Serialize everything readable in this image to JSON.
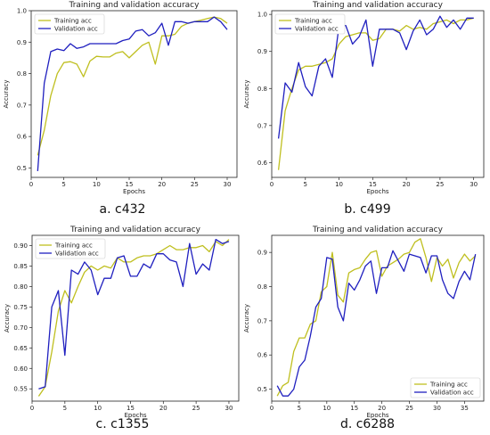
{
  "chart_data": [
    {
      "type": "line",
      "caption": "a. c432",
      "title": "Training and validation accuracy",
      "xlabel": "Epochs",
      "ylabel": "Accuracy",
      "xlim": [
        0,
        31.5
      ],
      "ylim": [
        0.47,
        1.0
      ],
      "xticks": [
        0,
        5,
        10,
        15,
        20,
        25,
        30
      ],
      "yticks": [
        0.5,
        0.6,
        0.7,
        0.8,
        0.9,
        1.0
      ],
      "ytick_labels": [
        "0.5",
        "0.6",
        "0.7",
        "0.8",
        "0.9",
        "1.0"
      ],
      "legend_position": "top-left",
      "x": [
        1,
        2,
        3,
        4,
        5,
        6,
        7,
        8,
        9,
        10,
        11,
        12,
        13,
        14,
        15,
        16,
        17,
        18,
        19,
        20,
        21,
        22,
        23,
        24,
        25,
        26,
        27,
        28,
        29,
        30
      ],
      "series": [
        {
          "name": "Training acc",
          "color": "#bfbf1f",
          "values": [
            0.54,
            0.62,
            0.73,
            0.8,
            0.835,
            0.838,
            0.83,
            0.79,
            0.84,
            0.855,
            0.853,
            0.853,
            0.865,
            0.87,
            0.85,
            0.87,
            0.89,
            0.9,
            0.83,
            0.92,
            0.92,
            0.925,
            0.95,
            0.96,
            0.965,
            0.97,
            0.975,
            0.98,
            0.975,
            0.96
          ]
        },
        {
          "name": "Validation acc",
          "color": "#1f1fbf",
          "values": [
            0.49,
            0.77,
            0.87,
            0.878,
            0.873,
            0.895,
            0.88,
            0.885,
            0.895,
            0.895,
            0.895,
            0.895,
            0.895,
            0.905,
            0.91,
            0.935,
            0.94,
            0.92,
            0.93,
            0.96,
            0.89,
            0.965,
            0.965,
            0.96,
            0.965,
            0.965,
            0.965,
            0.98,
            0.965,
            0.94
          ]
        }
      ]
    },
    {
      "type": "line",
      "caption": "b. c499",
      "title": "Training and validation accuracy",
      "xlabel": "Epochs",
      "ylabel": "Accuracy",
      "xlim": [
        0,
        31.5
      ],
      "ylim": [
        0.56,
        1.01
      ],
      "xticks": [
        0,
        5,
        10,
        15,
        20,
        25,
        30
      ],
      "yticks": [
        0.6,
        0.7,
        0.8,
        0.9,
        1.0
      ],
      "ytick_labels": [
        "0.6",
        "0.7",
        "0.8",
        "0.9",
        "1.0"
      ],
      "legend_position": "top-left",
      "x": [
        1,
        2,
        3,
        4,
        5,
        6,
        7,
        8,
        9,
        10,
        11,
        12,
        13,
        14,
        15,
        16,
        17,
        18,
        19,
        20,
        21,
        22,
        23,
        24,
        25,
        26,
        27,
        28,
        29,
        30
      ],
      "series": [
        {
          "name": "Training acc",
          "color": "#bfbf1f",
          "values": [
            0.58,
            0.74,
            0.8,
            0.85,
            0.86,
            0.86,
            0.865,
            0.87,
            0.88,
            0.92,
            0.94,
            0.945,
            0.95,
            0.95,
            0.93,
            0.935,
            0.96,
            0.96,
            0.955,
            0.97,
            0.96,
            0.965,
            0.96,
            0.975,
            0.98,
            0.985,
            0.975,
            0.985,
            0.985,
            0.99
          ]
        },
        {
          "name": "Validation acc",
          "color": "#1f1fbf",
          "values": [
            0.665,
            0.815,
            0.79,
            0.87,
            0.805,
            0.78,
            0.86,
            0.88,
            0.83,
            0.97,
            0.97,
            0.92,
            0.94,
            0.985,
            0.86,
            0.96,
            0.96,
            0.96,
            0.95,
            0.905,
            0.955,
            0.985,
            0.945,
            0.96,
            0.995,
            0.965,
            0.985,
            0.96,
            0.99,
            0.99
          ]
        }
      ]
    },
    {
      "type": "line",
      "caption": "c. c1355",
      "title": "Training and validation accuracy",
      "xlabel": "Epochs",
      "ylabel": "Accuracy",
      "xlim": [
        0,
        31.5
      ],
      "ylim": [
        0.52,
        0.925
      ],
      "xticks": [
        0,
        5,
        10,
        15,
        20,
        25,
        30
      ],
      "yticks": [
        0.55,
        0.6,
        0.65,
        0.7,
        0.75,
        0.8,
        0.85,
        0.9
      ],
      "ytick_labels": [
        "0.55",
        "0.60",
        "0.65",
        "0.70",
        "0.75",
        "0.80",
        "0.85",
        "0.90"
      ],
      "legend_position": "top-left",
      "x": [
        1,
        2,
        3,
        4,
        5,
        6,
        7,
        8,
        9,
        10,
        11,
        12,
        13,
        14,
        15,
        16,
        17,
        18,
        19,
        20,
        21,
        22,
        23,
        24,
        25,
        26,
        27,
        28,
        29,
        30
      ],
      "series": [
        {
          "name": "Training acc",
          "color": "#bfbf1f",
          "values": [
            0.532,
            0.555,
            0.64,
            0.74,
            0.79,
            0.76,
            0.8,
            0.835,
            0.85,
            0.84,
            0.85,
            0.845,
            0.87,
            0.86,
            0.86,
            0.87,
            0.875,
            0.875,
            0.88,
            0.89,
            0.9,
            0.89,
            0.89,
            0.895,
            0.895,
            0.9,
            0.885,
            0.91,
            0.9,
            0.915
          ]
        },
        {
          "name": "Validation acc",
          "color": "#1f1fbf",
          "values": [
            0.55,
            0.555,
            0.75,
            0.79,
            0.632,
            0.84,
            0.83,
            0.86,
            0.84,
            0.78,
            0.82,
            0.82,
            0.87,
            0.875,
            0.825,
            0.825,
            0.855,
            0.845,
            0.88,
            0.88,
            0.865,
            0.86,
            0.8,
            0.905,
            0.83,
            0.855,
            0.84,
            0.915,
            0.905,
            0.91
          ]
        }
      ]
    },
    {
      "type": "line",
      "caption": "d. c6288",
      "title": "Training and validation accuracy",
      "xlabel": "Epochs",
      "ylabel": "Accuracy",
      "xlim": [
        0,
        38.5
      ],
      "ylim": [
        0.465,
        0.95
      ],
      "xticks": [
        0,
        5,
        10,
        15,
        20,
        25,
        30,
        35
      ],
      "yticks": [
        0.5,
        0.6,
        0.7,
        0.8,
        0.9
      ],
      "ytick_labels": [
        "0.5",
        "0.6",
        "0.7",
        "0.8",
        "0.9"
      ],
      "legend_position": "bottom-right",
      "x": [
        1,
        2,
        3,
        4,
        5,
        6,
        7,
        8,
        9,
        10,
        11,
        12,
        13,
        14,
        15,
        16,
        17,
        18,
        19,
        20,
        21,
        22,
        23,
        24,
        25,
        26,
        27,
        28,
        29,
        30,
        31,
        32,
        33,
        34,
        35,
        36,
        37
      ],
      "series": [
        {
          "name": "Training acc",
          "color": "#bfbf1f",
          "values": [
            0.48,
            0.51,
            0.52,
            0.61,
            0.65,
            0.65,
            0.69,
            0.7,
            0.785,
            0.8,
            0.9,
            0.775,
            0.755,
            0.84,
            0.85,
            0.855,
            0.88,
            0.9,
            0.905,
            0.83,
            0.86,
            0.87,
            0.88,
            0.895,
            0.9,
            0.93,
            0.94,
            0.885,
            0.815,
            0.885,
            0.86,
            0.88,
            0.825,
            0.87,
            0.895,
            0.875,
            0.89
          ]
        },
        {
          "name": "Validation acc",
          "color": "#1f1fbf",
          "values": [
            0.51,
            0.48,
            0.48,
            0.5,
            0.565,
            0.585,
            0.655,
            0.74,
            0.765,
            0.885,
            0.88,
            0.74,
            0.7,
            0.81,
            0.79,
            0.82,
            0.86,
            0.875,
            0.78,
            0.855,
            0.855,
            0.905,
            0.875,
            0.845,
            0.895,
            0.89,
            0.885,
            0.84,
            0.89,
            0.89,
            0.82,
            0.78,
            0.765,
            0.815,
            0.845,
            0.82,
            0.895
          ]
        }
      ]
    }
  ]
}
